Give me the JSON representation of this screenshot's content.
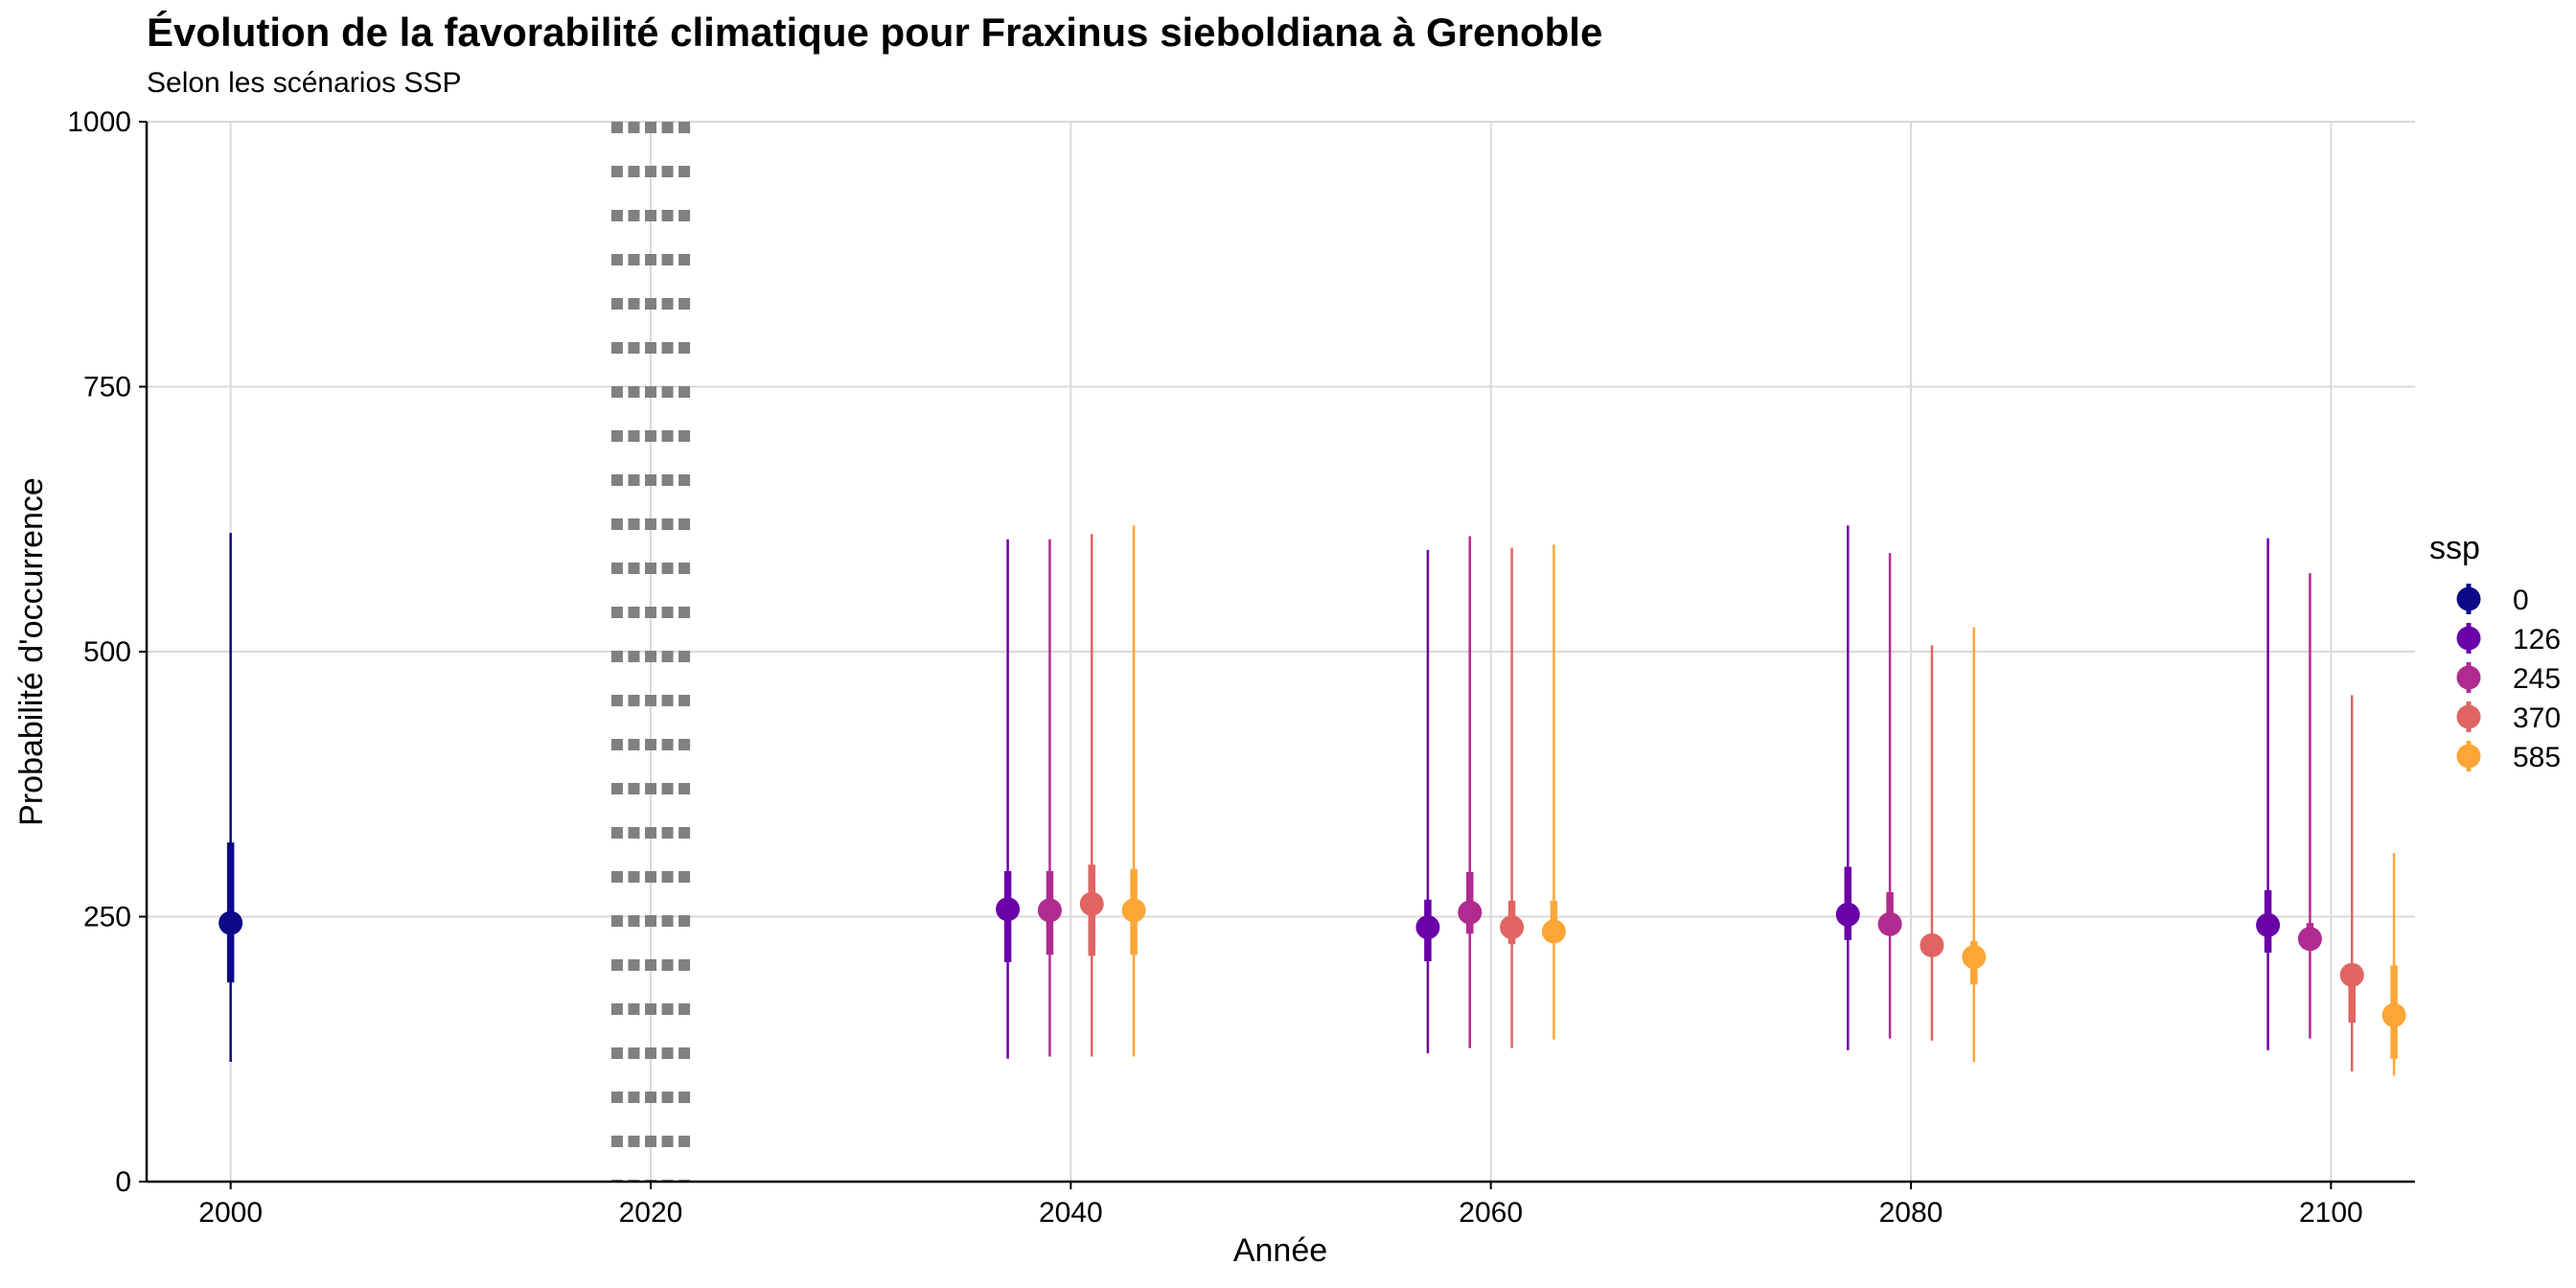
{
  "chart_data": {
    "type": "pointrange",
    "title": "Évolution de la favorabilité climatique pour Fraxinus sieboldiana à Grenoble",
    "subtitle": "Selon les scénarios SSP",
    "xlabel": "Année",
    "ylabel": "Probabilité d'occurrence",
    "xlim": [
      1996,
      2104
    ],
    "ylim": [
      0,
      1000
    ],
    "x_ticks": [
      2000,
      2020,
      2040,
      2060,
      2080,
      2100
    ],
    "y_ticks": [
      0,
      250,
      500,
      750,
      1000
    ],
    "grid": true,
    "reference_line": {
      "x_range": [
        2018,
        2022
      ],
      "style": "dotted",
      "color": "#808080"
    },
    "legend": {
      "title": "ssp",
      "position": "right"
    },
    "series": [
      {
        "name": "0",
        "color": "#0D0887",
        "points": [
          {
            "x": 2000,
            "y": 244,
            "q_low": 188,
            "q_high": 320,
            "min": 113,
            "max": 612
          }
        ]
      },
      {
        "name": "126",
        "color": "#6A00A8",
        "points": [
          {
            "x": 2037,
            "y": 257,
            "q_low": 207,
            "q_high": 293,
            "min": 116,
            "max": 606
          },
          {
            "x": 2057,
            "y": 240,
            "q_low": 208,
            "q_high": 266,
            "min": 121,
            "max": 596
          },
          {
            "x": 2077,
            "y": 252,
            "q_low": 228,
            "q_high": 297,
            "min": 124,
            "max": 619
          },
          {
            "x": 2097,
            "y": 242,
            "q_low": 216,
            "q_high": 275,
            "min": 124,
            "max": 607
          }
        ]
      },
      {
        "name": "245",
        "color": "#B12A90",
        "points": [
          {
            "x": 2039,
            "y": 256,
            "q_low": 214,
            "q_high": 293,
            "min": 118,
            "max": 606
          },
          {
            "x": 2059,
            "y": 254,
            "q_low": 234,
            "q_high": 292,
            "min": 126,
            "max": 609
          },
          {
            "x": 2079,
            "y": 243,
            "q_low": 232,
            "q_high": 273,
            "min": 135,
            "max": 593
          },
          {
            "x": 2099,
            "y": 229,
            "q_low": 222,
            "q_high": 244,
            "min": 135,
            "max": 574
          }
        ]
      },
      {
        "name": "370",
        "color": "#E16462",
        "points": [
          {
            "x": 2041,
            "y": 262,
            "q_low": 213,
            "q_high": 299,
            "min": 118,
            "max": 611
          },
          {
            "x": 2061,
            "y": 240,
            "q_low": 224,
            "q_high": 265,
            "min": 126,
            "max": 598
          },
          {
            "x": 2081,
            "y": 223,
            "q_low": 219,
            "q_high": 230,
            "min": 133,
            "max": 506
          },
          {
            "x": 2101,
            "y": 195,
            "q_low": 150,
            "q_high": 205,
            "min": 104,
            "max": 459
          }
        ]
      },
      {
        "name": "585",
        "color": "#FCA636",
        "points": [
          {
            "x": 2043,
            "y": 256,
            "q_low": 214,
            "q_high": 295,
            "min": 118,
            "max": 619
          },
          {
            "x": 2063,
            "y": 236,
            "q_low": 226,
            "q_high": 265,
            "min": 134,
            "max": 601
          },
          {
            "x": 2083,
            "y": 212,
            "q_low": 186,
            "q_high": 227,
            "min": 113,
            "max": 523
          },
          {
            "x": 2103,
            "y": 157,
            "q_low": 116,
            "q_high": 204,
            "min": 100,
            "max": 310
          }
        ]
      }
    ]
  }
}
